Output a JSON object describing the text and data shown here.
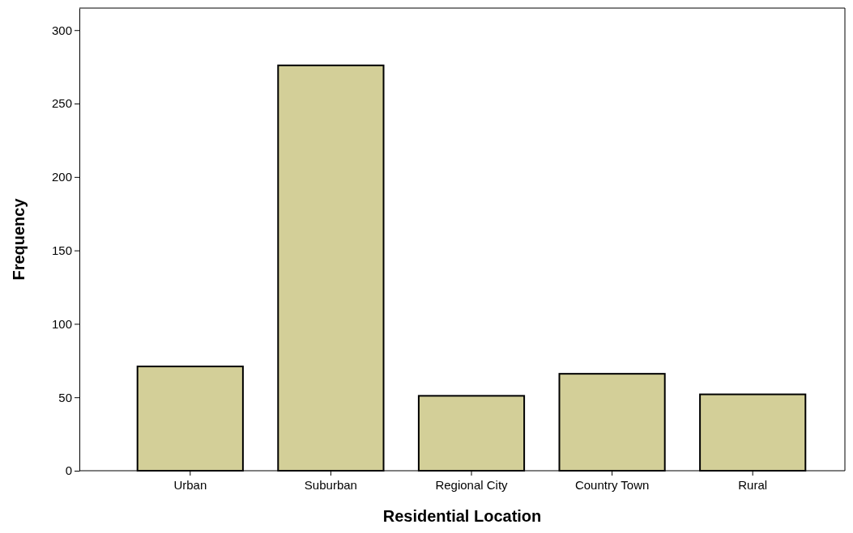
{
  "chart_data": {
    "type": "bar",
    "xlabel": "Residential Location",
    "ylabel": "Frequency",
    "categories": [
      "Urban",
      "Suburban",
      "Regional City",
      "Country Town",
      "Rural"
    ],
    "values": [
      71,
      276,
      51,
      66,
      52
    ],
    "color": "#d3cf98",
    "ylim": [
      0,
      315
    ],
    "yticks": [
      0,
      50,
      100,
      150,
      200,
      250,
      300
    ],
    "grid": false
  }
}
